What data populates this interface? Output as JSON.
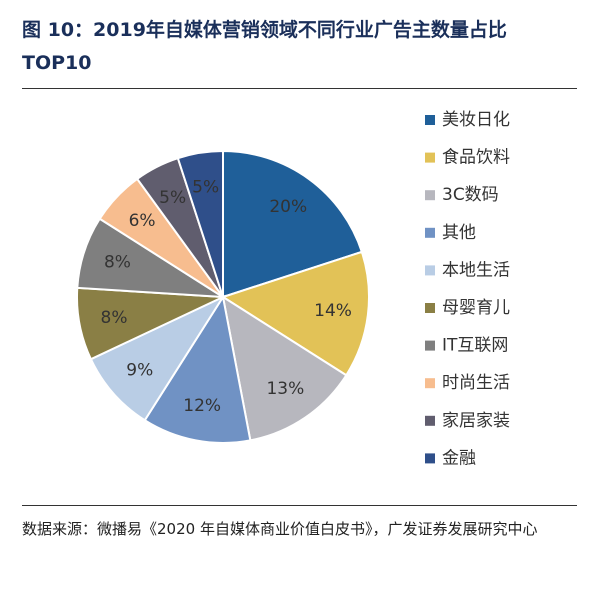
{
  "chart_data": {
    "type": "pie",
    "title": "图 10：2019年自媒体营销领域不同行业广告主数量占比TOP10",
    "source": "数据来源：微播易《2020 年自媒体商业价值白皮书》，广发证券发展研究中心",
    "categories": [
      "美妆日化",
      "食品饮料",
      "3C数码",
      "其他",
      "本地生活",
      "母婴育儿",
      "IT互联网",
      "时尚生活",
      "家居家装",
      "金融"
    ],
    "values": [
      20,
      14,
      13,
      12,
      9,
      8,
      8,
      6,
      5,
      5
    ],
    "value_labels": [
      "20%",
      "14%",
      "13%",
      "12%",
      "9%",
      "8%",
      "8%",
      "6%",
      "5%",
      "5%"
    ],
    "colors": [
      "#1f5f99",
      "#e2c257",
      "#b7b7be",
      "#7092c4",
      "#b9cde5",
      "#8a7f45",
      "#7f7f7f",
      "#f7bd8f",
      "#605d6e",
      "#2f4f8a"
    ],
    "legend": "right"
  }
}
